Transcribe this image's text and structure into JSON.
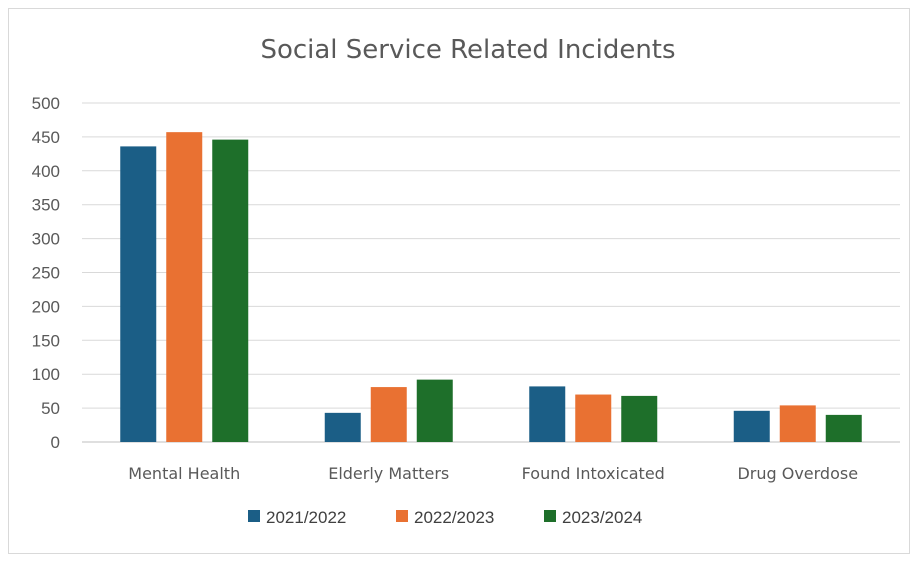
{
  "chart_data": {
    "type": "bar",
    "title": "Social Service Related Incidents",
    "xlabel": "",
    "ylabel": "",
    "categories": [
      "Mental Health",
      "Elderly Matters",
      "Found Intoxicated",
      "Drug Overdose"
    ],
    "series": [
      {
        "name": "2021/2022",
        "color": "#1b5e86",
        "values": [
          436,
          43,
          82,
          46
        ]
      },
      {
        "name": "2022/2023",
        "color": "#e97132",
        "values": [
          457,
          81,
          70,
          54
        ]
      },
      {
        "name": "2023/2024",
        "color": "#1e6f2a",
        "values": [
          446,
          92,
          68,
          40
        ]
      }
    ],
    "ylim": [
      0,
      500
    ],
    "yticks": [
      0,
      50,
      100,
      150,
      200,
      250,
      300,
      350,
      400,
      450,
      500
    ],
    "grid": true,
    "legend_position": "bottom"
  }
}
